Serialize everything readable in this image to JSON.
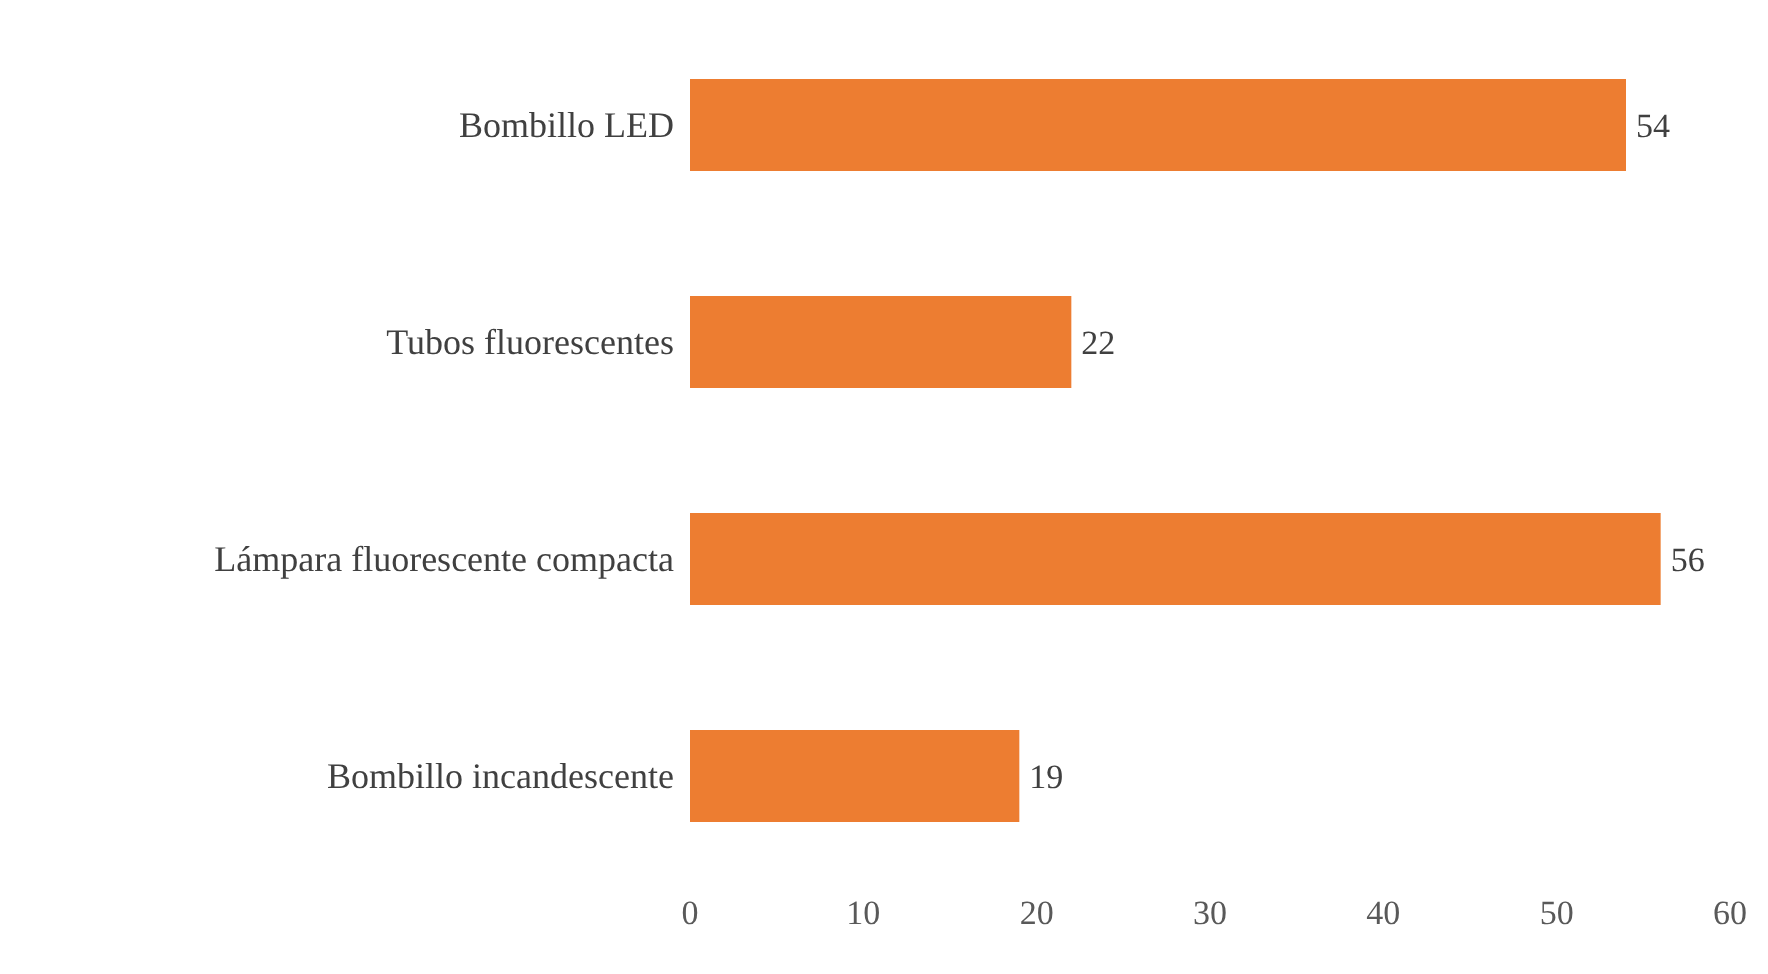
{
  "chart_data": {
    "type": "bar",
    "orientation": "horizontal",
    "categories": [
      "Bombillo LED",
      "Tubos fluorescentes",
      "Lámpara fluorescente compacta",
      "Bombillo incandescente"
    ],
    "values": [
      54,
      22,
      56,
      19
    ],
    "color": "#ed7d31",
    "xlim": [
      0,
      60
    ],
    "xticks": [
      0,
      10,
      20,
      30,
      40,
      50,
      60
    ],
    "data_labels": true,
    "grid": false,
    "legend": false
  }
}
